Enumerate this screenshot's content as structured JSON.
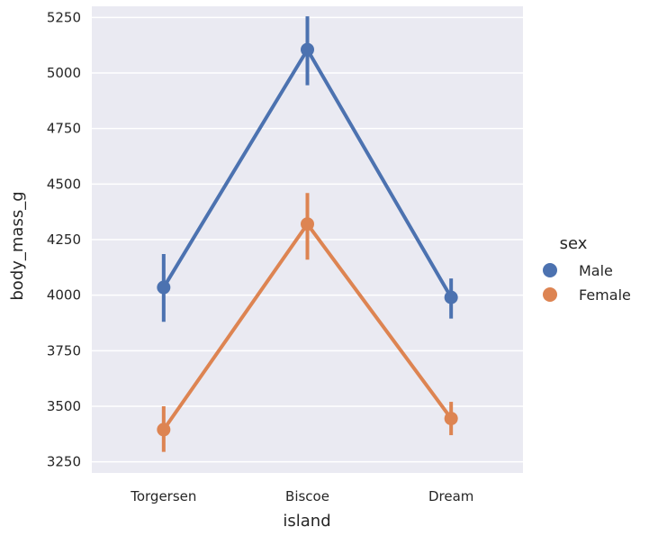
{
  "chart_data": {
    "type": "line",
    "xlabel": "island",
    "ylabel": "body_mass_g",
    "categories": [
      "Torgersen",
      "Biscoe",
      "Dream"
    ],
    "ylim": [
      3200,
      5300
    ],
    "yticks": [
      3250,
      3500,
      3750,
      4000,
      4250,
      4500,
      4750,
      5000,
      5250
    ],
    "grid": true,
    "legend": {
      "title": "sex",
      "placement": "right"
    },
    "series": [
      {
        "name": "Male",
        "color": "#4c72b0",
        "values": [
          4035,
          5105,
          3990
        ],
        "ci_low": [
          3880,
          4945,
          3895
        ],
        "ci_high": [
          4185,
          5255,
          4075
        ]
      },
      {
        "name": "Female",
        "color": "#dd8452",
        "values": [
          3395,
          4320,
          3445
        ],
        "ci_low": [
          3295,
          4160,
          3370
        ],
        "ci_high": [
          3500,
          4460,
          3520
        ]
      }
    ]
  }
}
